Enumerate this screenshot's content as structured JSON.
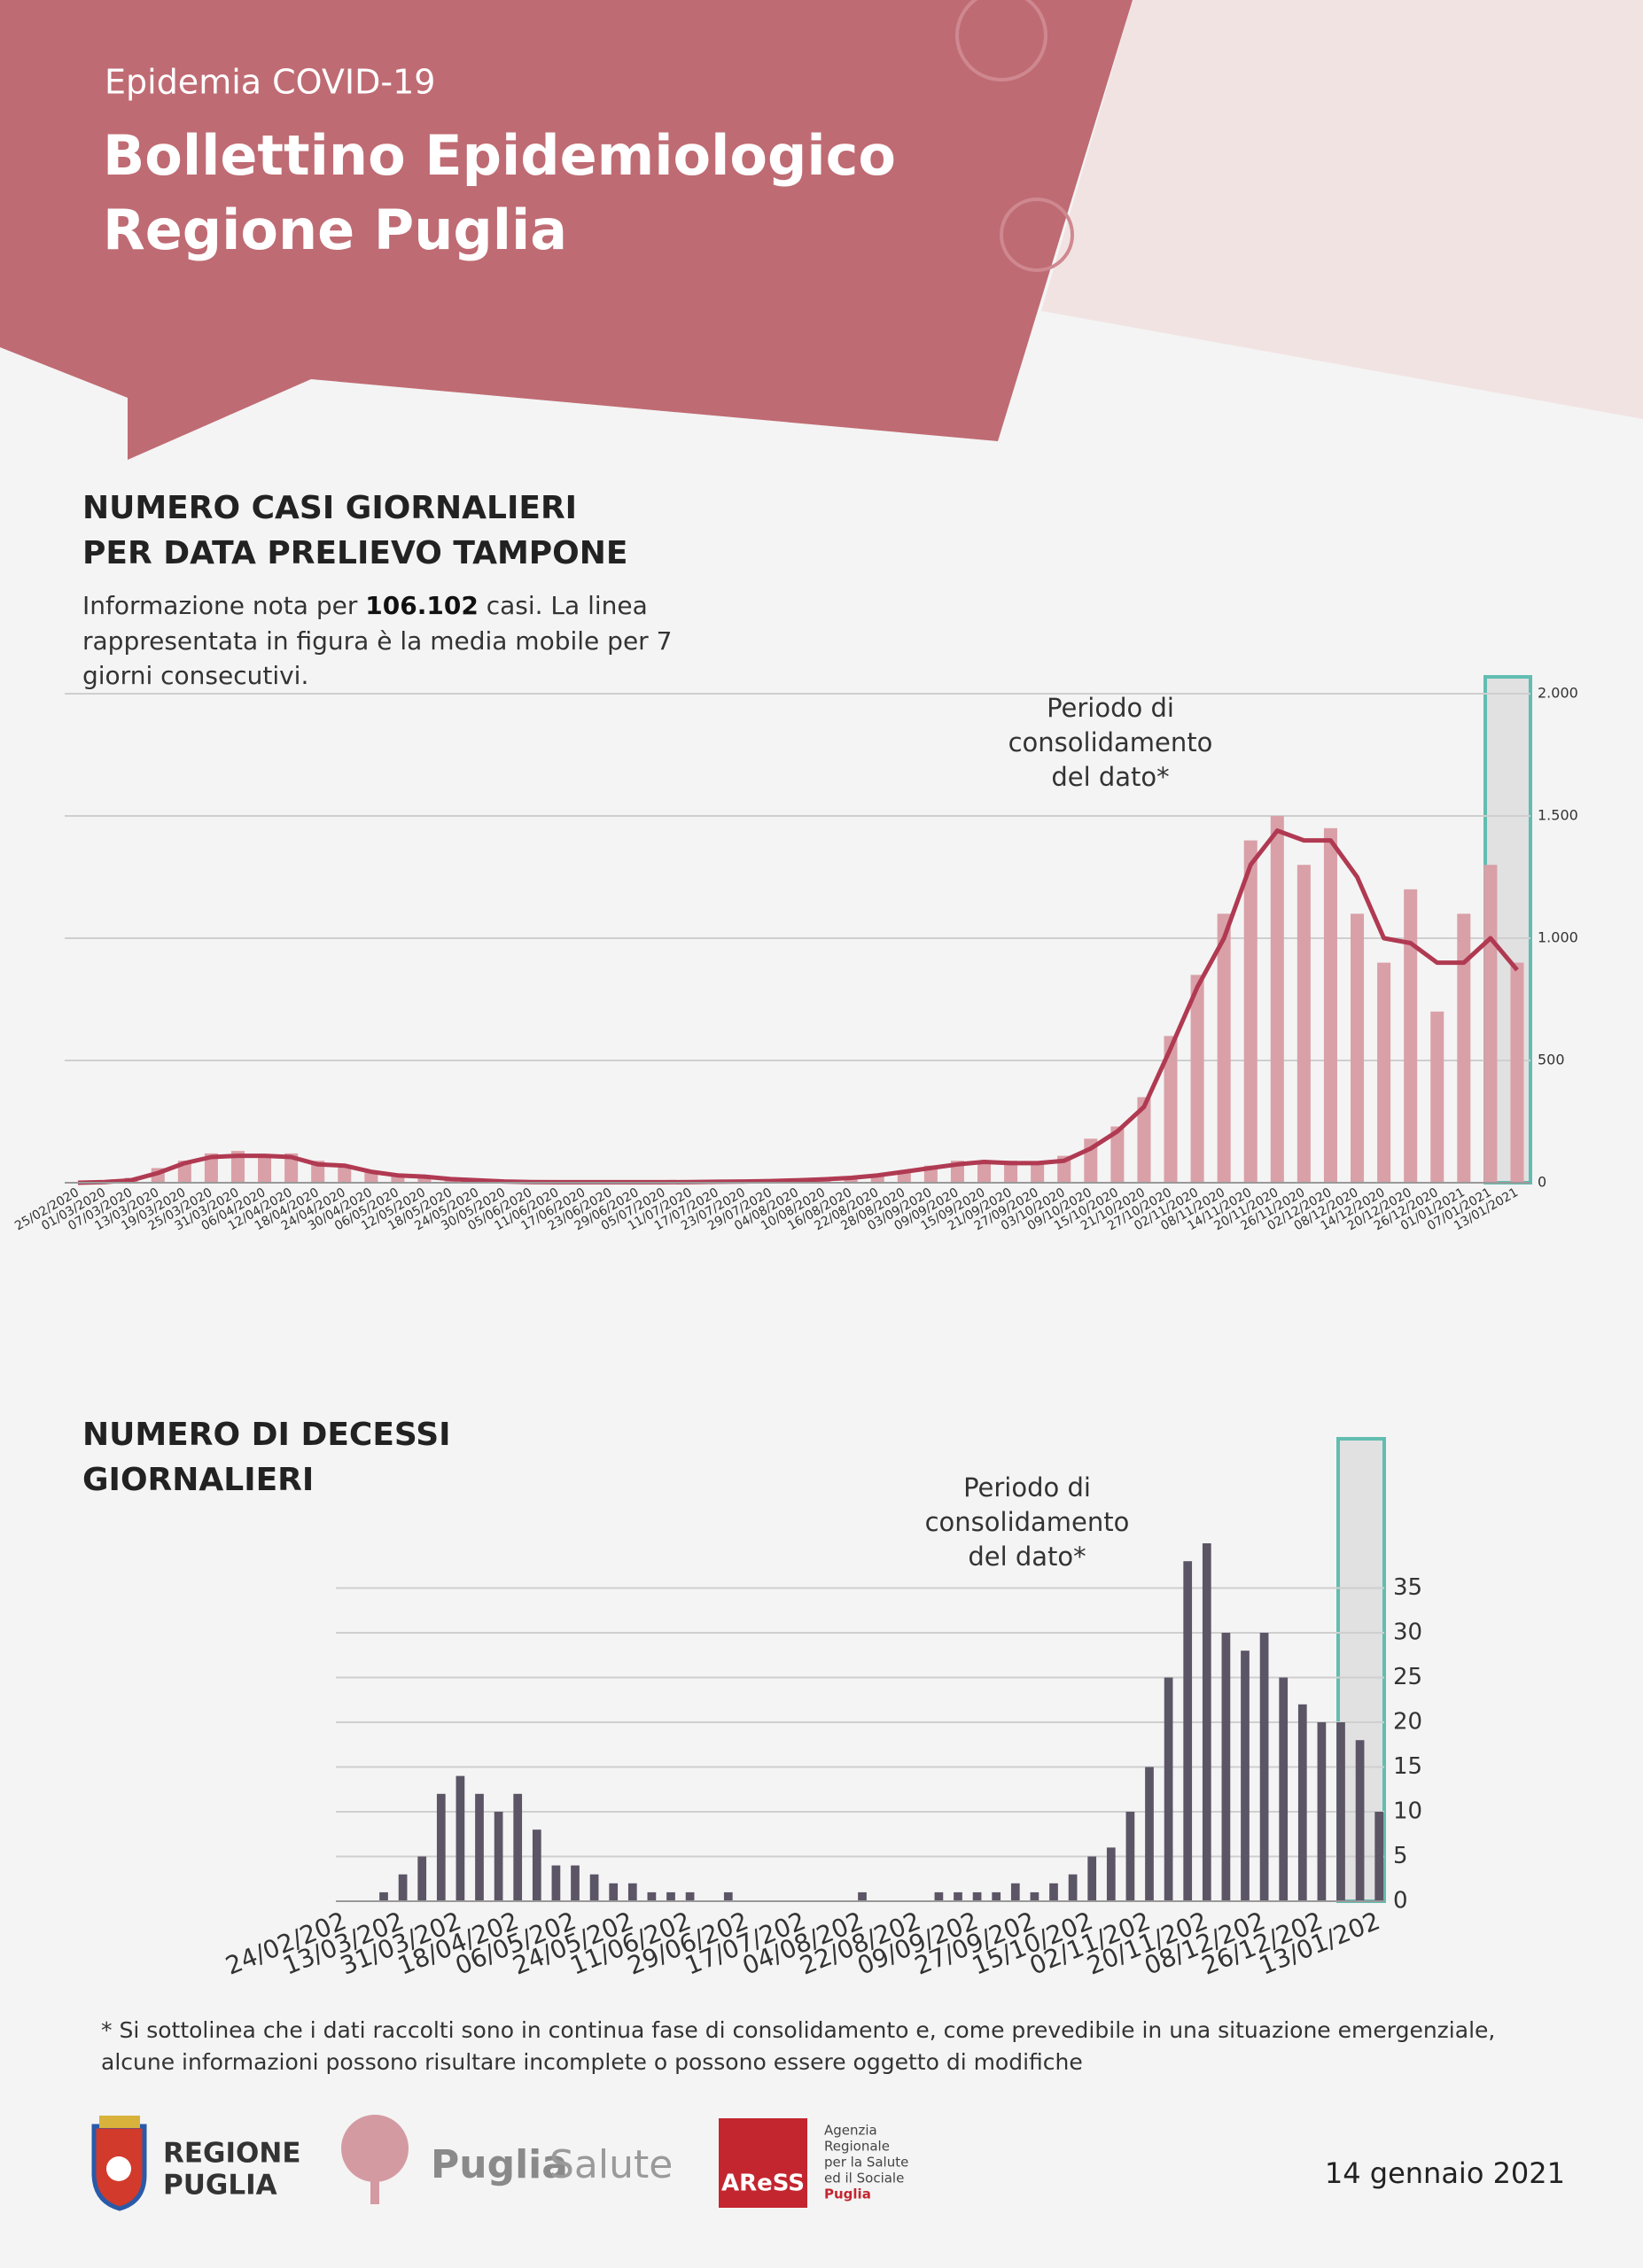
{
  "header": {
    "kicker": "Epidemia COVID-19",
    "title": [
      "Bollettino Epidemiologico",
      "Regione Puglia"
    ]
  },
  "chart_data": [
    {
      "type": "bar",
      "title": [
        "NUMERO CASI GIORNALIERI",
        "PER DATA PRELIEVO TAMPONE"
      ],
      "intro": [
        "Informazione nota per",
        "106.102",
        "casi. La linea",
        "rappresentata in figura è la media mobile per 7",
        "giorni consecutivi."
      ],
      "annotation": [
        "Periodo di",
        "consolidamento",
        "del dato*"
      ],
      "categories": [
        "25/02/2020",
        "01/03/2020",
        "07/03/2020",
        "13/03/2020",
        "19/03/2020",
        "25/03/2020",
        "31/03/2020",
        "06/04/2020",
        "12/04/2020",
        "18/04/2020",
        "24/04/2020",
        "30/04/2020",
        "06/05/2020",
        "12/05/2020",
        "18/05/2020",
        "24/05/2020",
        "30/05/2020",
        "05/06/2020",
        "11/06/2020",
        "17/06/2020",
        "23/06/2020",
        "29/06/2020",
        "05/07/2020",
        "11/07/2020",
        "17/07/2020",
        "23/07/2020",
        "29/07/2020",
        "04/08/2020",
        "10/08/2020",
        "16/08/2020",
        "22/08/2020",
        "28/08/2020",
        "03/09/2020",
        "09/09/2020",
        "15/09/2020",
        "21/09/2020",
        "27/09/2020",
        "03/10/2020",
        "09/10/2020",
        "15/10/2020",
        "21/10/2020",
        "27/10/2020",
        "02/11/2020",
        "08/11/2020",
        "14/11/2020",
        "20/11/2020",
        "26/11/2020",
        "02/12/2020",
        "08/12/2020",
        "14/12/2020",
        "20/12/2020",
        "26/12/2020",
        "01/01/2021",
        "07/01/2021",
        "13/01/2021"
      ],
      "values": [
        0,
        5,
        20,
        60,
        90,
        120,
        130,
        110,
        120,
        90,
        70,
        50,
        30,
        20,
        15,
        8,
        5,
        3,
        2,
        2,
        2,
        2,
        3,
        3,
        4,
        5,
        8,
        10,
        15,
        20,
        30,
        50,
        70,
        90,
        80,
        90,
        85,
        110,
        180,
        230,
        350,
        600,
        850,
        1100,
        1400,
        1500,
        1300,
        1450,
        1100,
        900,
        1200,
        700,
        1100,
        1300,
        900
      ],
      "color": "#d9a0a8",
      "line_values": [
        0,
        3,
        10,
        40,
        80,
        105,
        110,
        110,
        105,
        75,
        70,
        45,
        30,
        25,
        15,
        10,
        5,
        3,
        2,
        2,
        2,
        2,
        2,
        3,
        4,
        5,
        7,
        10,
        14,
        20,
        30,
        45,
        60,
        75,
        85,
        80,
        80,
        90,
        140,
        210,
        310,
        550,
        800,
        1000,
        1300,
        1440,
        1400,
        1400,
        1250,
        1000,
        980,
        900,
        900,
        1000,
        870
      ],
      "line_color": "#b03a52",
      "ylim": [
        0,
        2000
      ],
      "yticks": [
        0,
        500,
        {
          "value": 1000,
          "label": "1.000"
        },
        {
          "value": 1500,
          "label": "1.500"
        },
        {
          "value": 2000,
          "label": "2.000"
        }
      ],
      "grid": true
    },
    {
      "type": "bar",
      "title": [
        "NUMERO DI DECESSI",
        "GIORNALIERI"
      ],
      "annotation": [
        "Periodo di",
        "consolidamento",
        "del dato*"
      ],
      "categories": [
        "24/02/202",
        null,
        null,
        "13/03/202",
        null,
        null,
        "31/03/202",
        null,
        null,
        "18/04/202",
        null,
        null,
        "06/05/202",
        null,
        null,
        "24/05/202",
        null,
        null,
        "11/06/202",
        null,
        null,
        "29/06/202",
        null,
        null,
        "17/07/202",
        null,
        null,
        "04/08/202",
        null,
        null,
        "22/08/202",
        null,
        null,
        "09/09/202",
        null,
        null,
        "27/09/202",
        null,
        null,
        "15/10/202",
        null,
        null,
        "02/11/202",
        null,
        null,
        "20/11/202",
        null,
        null,
        "08/12/202",
        null,
        null,
        "26/12/202",
        null,
        null,
        "13/01/202"
      ],
      "values": [
        0,
        0,
        1,
        3,
        5,
        12,
        14,
        12,
        10,
        12,
        8,
        4,
        4,
        3,
        2,
        2,
        1,
        1,
        1,
        0,
        1,
        0,
        0,
        0,
        0,
        0,
        0,
        1,
        0,
        0,
        0,
        1,
        1,
        1,
        1,
        2,
        1,
        2,
        3,
        5,
        6,
        10,
        15,
        25,
        38,
        40,
        30,
        28,
        30,
        25,
        22,
        20,
        20,
        18,
        10
      ],
      "color": "#5b5566",
      "ylim": [
        0,
        50
      ],
      "yticks": [
        0,
        5,
        10,
        15,
        20,
        25,
        30,
        35
      ],
      "grid": true
    }
  ],
  "footnote": [
    "* Si sottolinea che i dati raccolti sono in continua fase di consolidamento e, come prevedibile in una situazione emergenziale,",
    "alcune informazioni possono risultare incomplete o possono essere oggetto di modifiche"
  ],
  "logos": {
    "regione": [
      "REGIONE",
      "PUGLIA"
    ],
    "puglia_salute": [
      "Puglia",
      "Salute"
    ],
    "aress": "AReSS",
    "aress_text": [
      "Agenzia",
      "Regionale",
      "per la Salute",
      "ed il Sociale",
      "Puglia"
    ]
  },
  "date": "14 gennaio 2021"
}
